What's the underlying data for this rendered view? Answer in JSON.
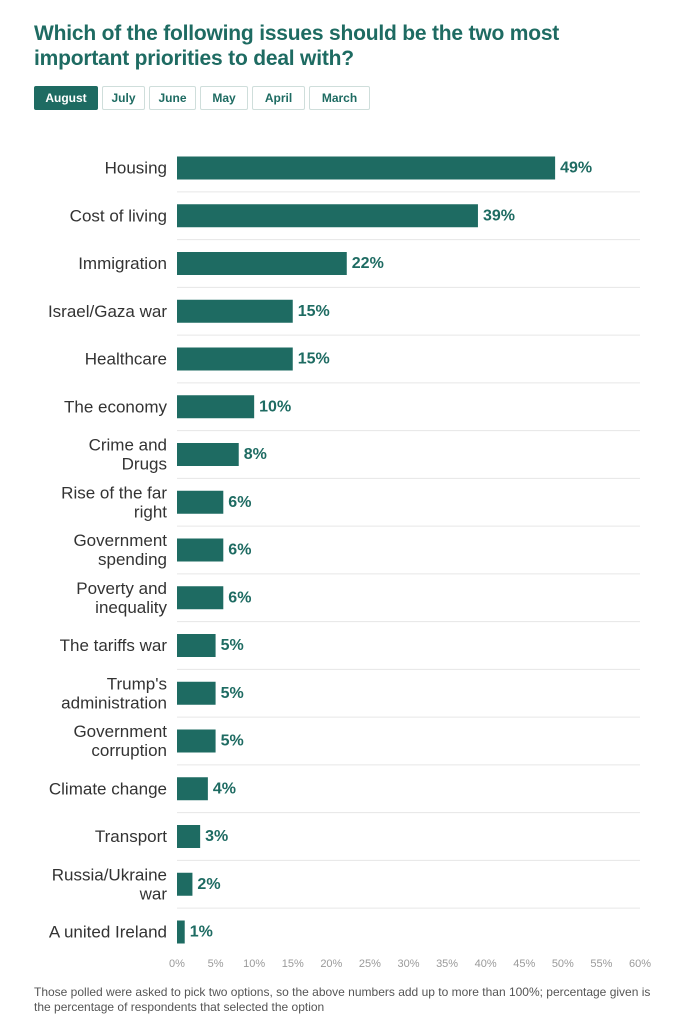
{
  "title": "Which of the following issues should be the two most important priorities to deal with?",
  "tabs": [
    {
      "label": "August",
      "active": true
    },
    {
      "label": "July",
      "active": false
    },
    {
      "label": "June",
      "active": false
    },
    {
      "label": "May",
      "active": false
    },
    {
      "label": "April",
      "active": false
    },
    {
      "label": "March",
      "active": false
    }
  ],
  "colors": {
    "accent": "#1e6b62",
    "bar": "#1e6b62",
    "label": "#333333",
    "tick": "#9a9a9a",
    "divider": "#e6e6e6"
  },
  "chart_data": {
    "type": "bar",
    "orientation": "horizontal",
    "categories": [
      [
        "Housing"
      ],
      [
        "Cost of living"
      ],
      [
        "Immigration"
      ],
      [
        "Israel/Gaza war"
      ],
      [
        "Healthcare"
      ],
      [
        "The economy"
      ],
      [
        "Crime and",
        "Drugs"
      ],
      [
        "Rise of the far",
        "right"
      ],
      [
        "Government",
        "spending"
      ],
      [
        "Poverty and",
        "inequality"
      ],
      [
        "The tariffs war"
      ],
      [
        "Trump's",
        "administration"
      ],
      [
        "Government",
        "corruption"
      ],
      [
        "Climate change"
      ],
      [
        "Transport"
      ],
      [
        "Russia/Ukraine",
        "war"
      ],
      [
        "A united Ireland"
      ]
    ],
    "values": [
      49,
      39,
      22,
      15,
      15,
      10,
      8,
      6,
      6,
      6,
      5,
      5,
      5,
      4,
      3,
      2,
      1
    ],
    "value_labels": [
      "49%",
      "39%",
      "22%",
      "15%",
      "15%",
      "10%",
      "8%",
      "6%",
      "6%",
      "6%",
      "5%",
      "5%",
      "5%",
      "4%",
      "3%",
      "2%",
      "1%"
    ],
    "xlim": [
      0,
      60
    ],
    "ticks": [
      "0%",
      "5%",
      "10%",
      "15%",
      "20%",
      "25%",
      "30%",
      "35%",
      "40%",
      "45%",
      "50%",
      "55%",
      "60%"
    ],
    "grid": false
  },
  "footnote": "Those polled were asked to pick two options, so the above numbers add up to more than 100%; percentage given is the percentage of respondents that selected the option"
}
